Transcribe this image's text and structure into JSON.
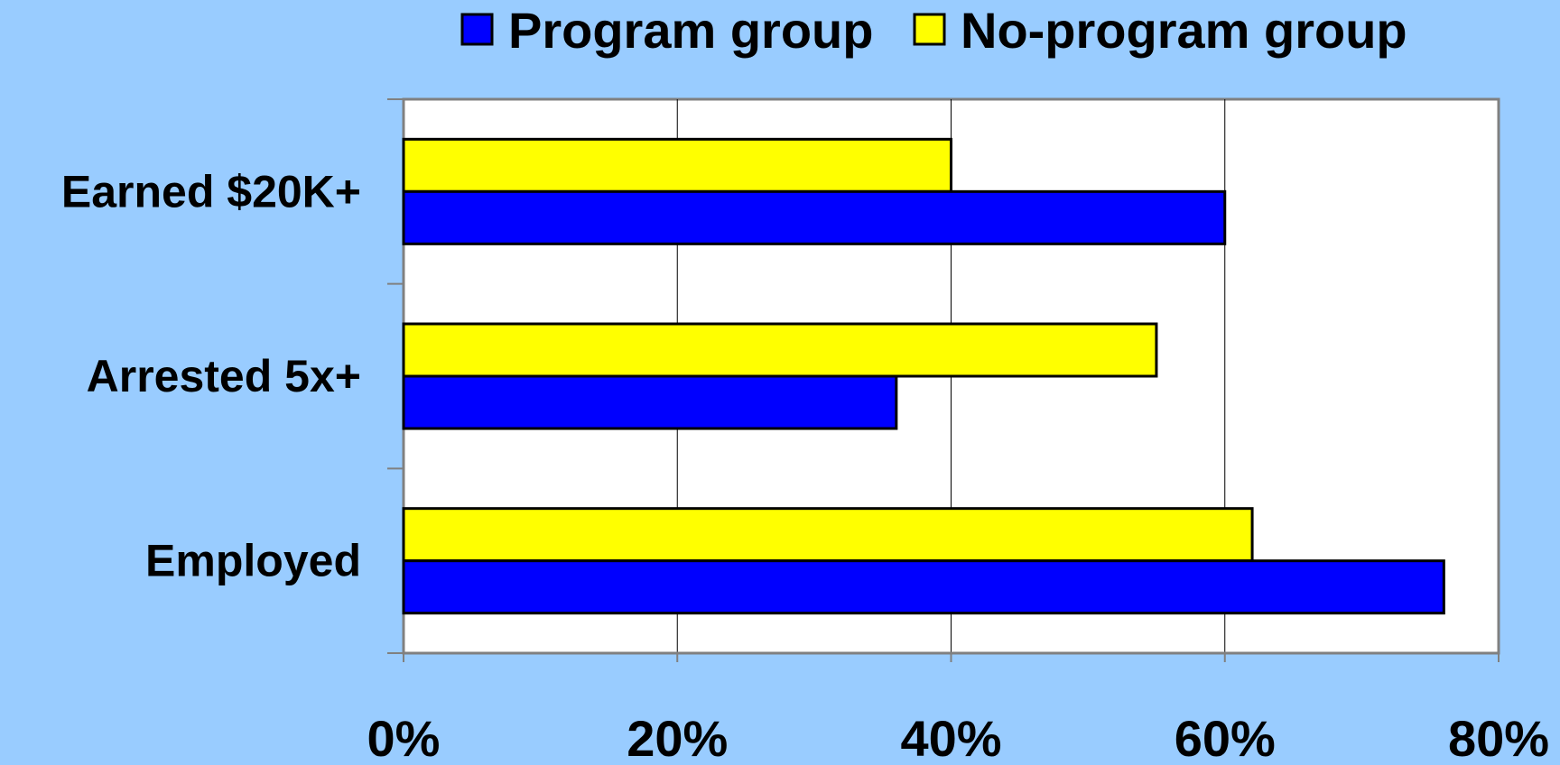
{
  "colors": {
    "background": "#99CCFF",
    "plot_area": "#FFFFFF",
    "program_group": "#0000FF",
    "no_program_group": "#FFFF00",
    "gridline": "#000000",
    "axis": "#808080"
  },
  "chart_data": {
    "type": "bar",
    "orientation": "horizontal",
    "title": "",
    "xlabel": "",
    "ylabel": "",
    "categories": [
      "Earned $20K+",
      "Arrested 5x+",
      "Employed"
    ],
    "series": [
      {
        "name": "Program group",
        "color": "#0000FF",
        "values": [
          60,
          36,
          76
        ]
      },
      {
        "name": "No-program group",
        "color": "#FFFF00",
        "values": [
          40,
          55,
          62
        ]
      }
    ],
    "xlim": [
      0,
      80
    ],
    "x_ticks": [
      0,
      20,
      40,
      60,
      80
    ],
    "x_tick_labels": [
      "0%",
      "20%",
      "40%",
      "60%",
      "80%"
    ],
    "grid": true,
    "legend_position": "top"
  }
}
